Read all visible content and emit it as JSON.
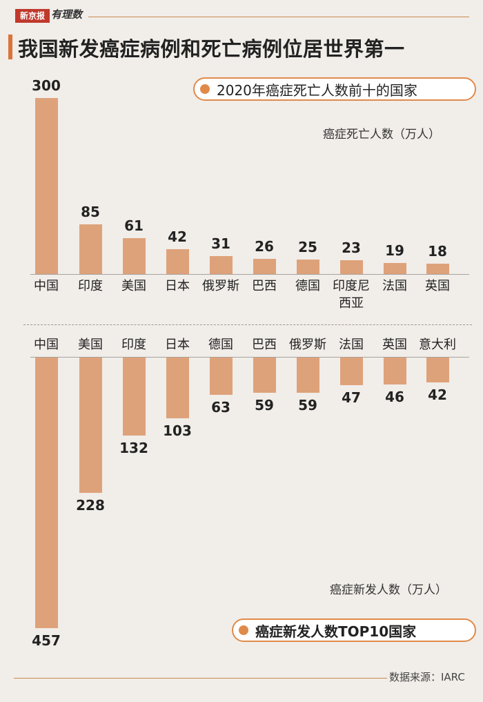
{
  "brand": {
    "badge": "新京报",
    "sub": "有理数"
  },
  "title": "我国新发癌症病例和死亡病例位居世界第一",
  "colors": {
    "bar": "#dea27a",
    "accent": "#e08a4a",
    "background": "#f1ede9"
  },
  "chart_data": [
    {
      "type": "bar",
      "title": "2020年癌症死亡人数前十的国家",
      "ylabel": "癌症死亡人数（万人）",
      "categories": [
        "中国",
        "印度",
        "美国",
        "日本",
        "俄罗斯",
        "巴西",
        "德国",
        "印度尼西亚",
        "法国",
        "英国"
      ],
      "values": [
        300,
        85,
        61,
        42,
        31,
        26,
        25,
        23,
        19,
        18
      ],
      "ylim": [
        0,
        300
      ],
      "grid": false
    },
    {
      "type": "bar",
      "title": "癌症新发人数TOP10国家",
      "ylabel": "癌症新发人数（万人）",
      "categories": [
        "中国",
        "美国",
        "印度",
        "日本",
        "德国",
        "巴西",
        "俄罗斯",
        "法国",
        "英国",
        "意大利"
      ],
      "values": [
        457,
        228,
        132,
        103,
        63,
        59,
        59,
        47,
        46,
        42
      ],
      "ylim": [
        0,
        457
      ],
      "direction": "downward",
      "grid": false
    }
  ],
  "source": "数据来源：IARC"
}
